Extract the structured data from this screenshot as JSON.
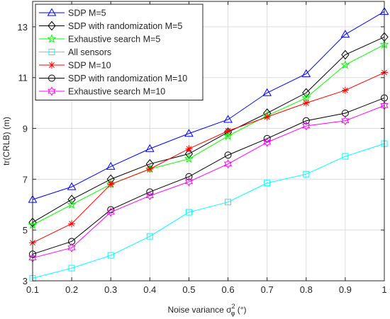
{
  "chart_data": {
    "type": "line",
    "xlabel_prefix": "Noise variance σ",
    "xlabel_sup": "2",
    "xlabel_sub": "φ",
    "xlabel_suffix": " (°)",
    "ylabel": "tr(CRLB) (m)",
    "xlim": [
      0.1,
      1.0
    ],
    "ylim": [
      3,
      14
    ],
    "xticks": [
      0.1,
      0.2,
      0.3,
      0.4,
      0.5,
      0.6,
      0.7,
      0.8,
      0.9,
      1.0
    ],
    "xtick_labels": [
      "0.1",
      "0.2",
      "0.3",
      "0.4",
      "0.5",
      "0.6",
      "0.7",
      "0.8",
      "0.9",
      "1"
    ],
    "yticks": [
      3,
      5,
      7,
      9,
      11,
      13
    ],
    "grid": true,
    "legend_position": "top-left",
    "x": [
      0.1,
      0.2,
      0.3,
      0.4,
      0.5,
      0.6,
      0.7,
      0.8,
      0.9,
      1.0
    ],
    "series": [
      {
        "name": "SDP M=5",
        "color": "#0000ff",
        "marker": "triangle",
        "values": [
          6.2,
          6.7,
          7.5,
          8.2,
          8.8,
          9.35,
          10.4,
          11.15,
          12.7,
          13.6
        ]
      },
      {
        "name": "SDP with randomization M=5",
        "color": "#000000",
        "marker": "diamond",
        "values": [
          5.3,
          6.2,
          7.0,
          7.6,
          8.0,
          8.85,
          9.6,
          10.4,
          11.9,
          12.6
        ]
      },
      {
        "name": "Exhaustive search M=5",
        "color": "#00ff00",
        "marker": "star5",
        "values": [
          5.2,
          6.0,
          6.8,
          7.4,
          7.8,
          8.7,
          9.5,
          10.2,
          11.5,
          12.3
        ]
      },
      {
        "name": "All sensors",
        "color": "#00ffff",
        "marker": "square",
        "values": [
          3.1,
          3.5,
          4.0,
          4.75,
          5.7,
          6.1,
          6.85,
          7.2,
          7.9,
          8.4
        ]
      },
      {
        "name": "SDP M=10",
        "color": "#ff0000",
        "marker": "asterisk",
        "values": [
          4.5,
          5.25,
          6.8,
          7.4,
          8.2,
          8.9,
          9.45,
          10.0,
          10.5,
          11.2
        ]
      },
      {
        "name": "SDP with randomization M=10",
        "color": "#000000",
        "marker": "circle",
        "values": [
          4.05,
          4.55,
          5.8,
          6.5,
          7.1,
          7.95,
          8.6,
          9.3,
          9.6,
          10.2
        ]
      },
      {
        "name": "Exhaustive search M=10",
        "color": "#ff00ff",
        "marker": "hexagram",
        "values": [
          3.9,
          4.3,
          5.7,
          6.35,
          6.9,
          7.6,
          8.45,
          9.1,
          9.3,
          9.9
        ]
      }
    ]
  }
}
